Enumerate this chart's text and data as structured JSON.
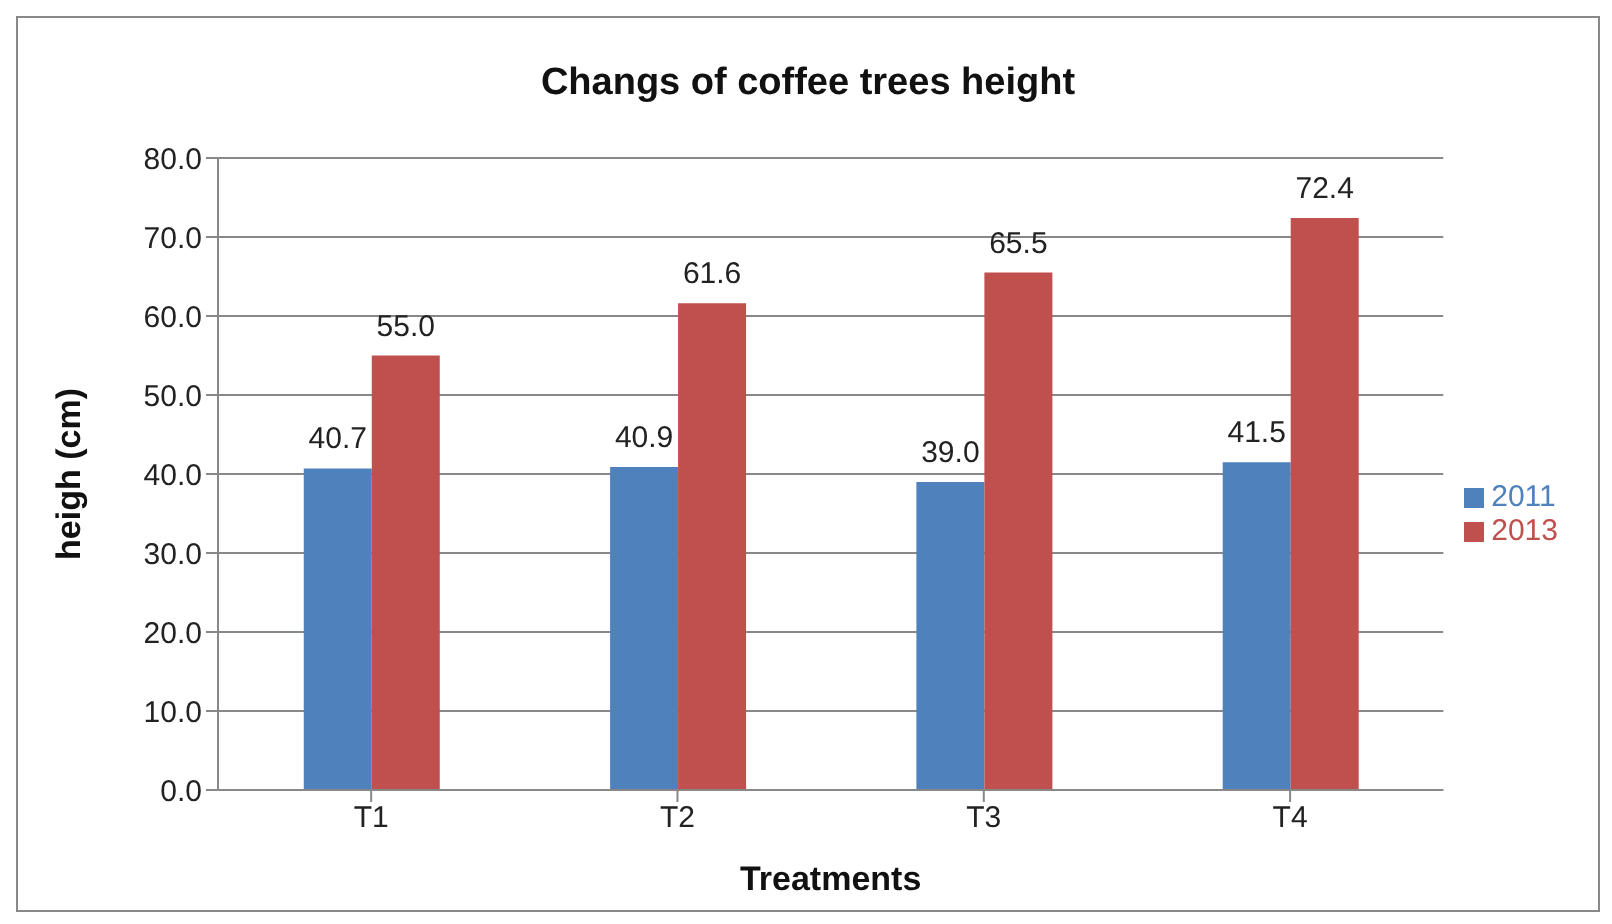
{
  "chart_data": {
    "type": "bar",
    "title": "Changs of coffee trees height",
    "xlabel": "Treatments",
    "ylabel": "heigh (cm)",
    "categories": [
      "T1",
      "T2",
      "T3",
      "T4"
    ],
    "series": [
      {
        "name": "2011",
        "color": "#4f81bd",
        "values": [
          40.7,
          40.9,
          39.0,
          41.5
        ],
        "value_labels": [
          "40.7",
          "40.9",
          "39.0",
          "41.5"
        ]
      },
      {
        "name": "2013",
        "color": "#c0504d",
        "values": [
          55.0,
          61.6,
          65.5,
          72.4
        ],
        "value_labels": [
          "55.0",
          "61.6",
          "65.5",
          "72.4"
        ]
      }
    ],
    "ylim": [
      0,
      80
    ],
    "yticks": [
      {
        "value": 0,
        "label": "0.0"
      },
      {
        "value": 10,
        "label": "10.0"
      },
      {
        "value": 20,
        "label": "20.0"
      },
      {
        "value": 30,
        "label": "30.0"
      },
      {
        "value": 40,
        "label": "40.0"
      },
      {
        "value": 50,
        "label": "50.0"
      },
      {
        "value": 60,
        "label": "60.0"
      },
      {
        "value": 70,
        "label": "70.0"
      },
      {
        "value": 80,
        "label": "80.0"
      }
    ],
    "grid": "y",
    "legend": "right"
  }
}
